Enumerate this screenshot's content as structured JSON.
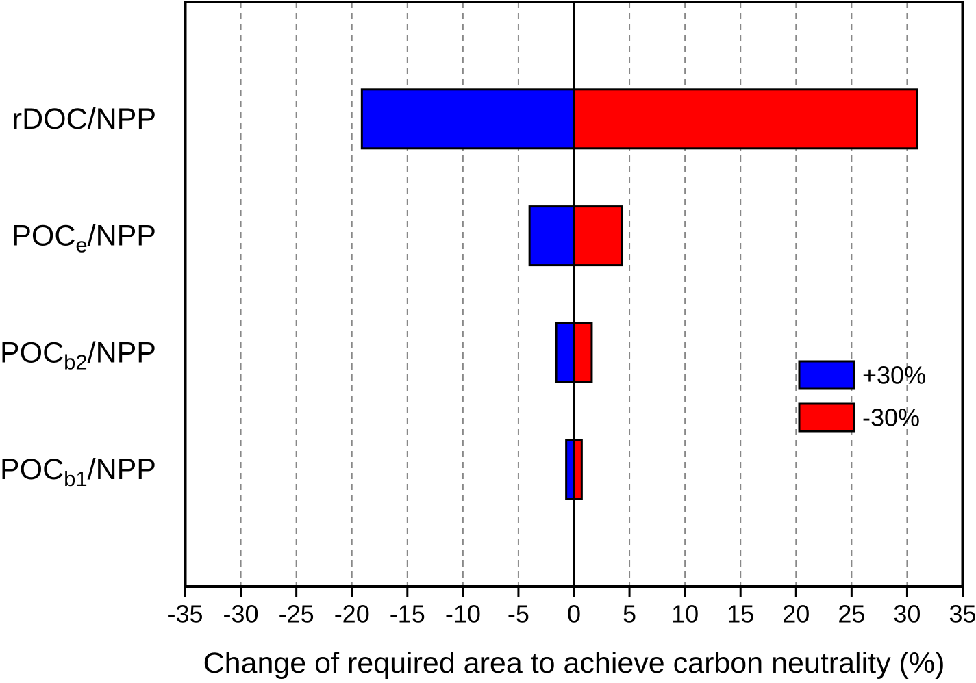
{
  "figure": {
    "background": "#FFFFFF"
  },
  "chart_data": {
    "type": "bar",
    "orientation": "horizontal-tornado",
    "title": "",
    "xlabel": "Change of required area to achieve carbon neutrality (%)",
    "ylabel": "",
    "xlim": [
      -35,
      35
    ],
    "xticks": [
      -35,
      -30,
      -25,
      -20,
      -15,
      -10,
      -5,
      0,
      5,
      10,
      15,
      20,
      25,
      30,
      35
    ],
    "grid": "vertical-dashed",
    "categories": [
      "rDOC/NPP",
      "POCe/NPP",
      "POCb2/NPP",
      "POCb1/NPP"
    ],
    "categories_rich": [
      [
        {
          "text": "rDOC/NPP",
          "sub": false
        }
      ],
      [
        {
          "text": "POC",
          "sub": false
        },
        {
          "text": "e",
          "sub": true
        },
        {
          "text": "/NPP",
          "sub": false
        }
      ],
      [
        {
          "text": "POC",
          "sub": false
        },
        {
          "text": "b2",
          "sub": true
        },
        {
          "text": "/NPP",
          "sub": false
        }
      ],
      [
        {
          "text": "POC",
          "sub": false
        },
        {
          "text": "b1",
          "sub": true
        },
        {
          "text": "/NPP",
          "sub": false
        }
      ]
    ],
    "series": [
      {
        "name": "+30%",
        "color": "#0000FF",
        "values": [
          -19.1,
          -4.0,
          -1.6,
          -0.7
        ]
      },
      {
        "name": "-30%",
        "color": "#FF0000",
        "values": [
          30.9,
          4.3,
          1.6,
          0.7
        ]
      }
    ],
    "legend_position": "center-right",
    "colors": {
      "grid": "#888888",
      "axis": "#000000",
      "bar_outline": "#000000",
      "background": "#FFFFFF"
    }
  }
}
